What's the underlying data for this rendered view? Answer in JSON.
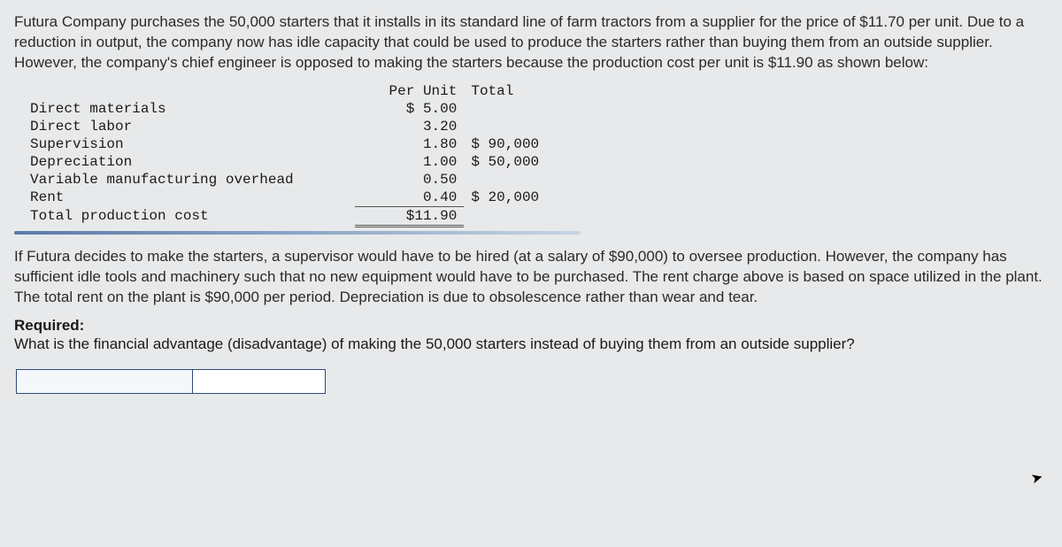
{
  "intro_paragraph": "Futura Company purchases the 50,000 starters that it installs in its standard line of farm tractors from a supplier for the price of $11.70 per unit. Due to a reduction in output, the company now has idle capacity that could be used to produce the starters rather than buying them from an outside supplier. However, the company's chief engineer is opposed to making the starters because the production cost per unit is $11.90 as shown below:",
  "cost_table": {
    "header_peru": "Per Unit",
    "header_total": "Total",
    "rows": [
      {
        "label": "Direct materials",
        "peru": "$ 5.00",
        "total": ""
      },
      {
        "label": "Direct labor",
        "peru": "3.20",
        "total": ""
      },
      {
        "label": "Supervision",
        "peru": "1.80",
        "total": "$ 90,000"
      },
      {
        "label": "Depreciation",
        "peru": "1.00",
        "total": "$ 50,000"
      },
      {
        "label": "Variable manufacturing overhead",
        "peru": "0.50",
        "total": ""
      },
      {
        "label": "Rent",
        "peru": "0.40",
        "total": "$ 20,000"
      }
    ],
    "total_label": "Total production cost",
    "total_peru": "$11.90"
  },
  "middle_paragraph": "If Futura decides to make the starters, a supervisor would have to be hired (at a salary of $90,000) to oversee production. However, the company has sufficient idle tools and machinery such that no new equipment would have to be purchased. The rent charge above is based on space utilized in the plant. The total rent on the plant is $90,000 per period. Depreciation is due to obsolescence rather than wear and tear.",
  "required_label": "Required:",
  "required_text": "What is the financial advantage (disadvantage) of making the 50,000 starters instead of buying them from an outside supplier?",
  "answer_input_value": ""
}
